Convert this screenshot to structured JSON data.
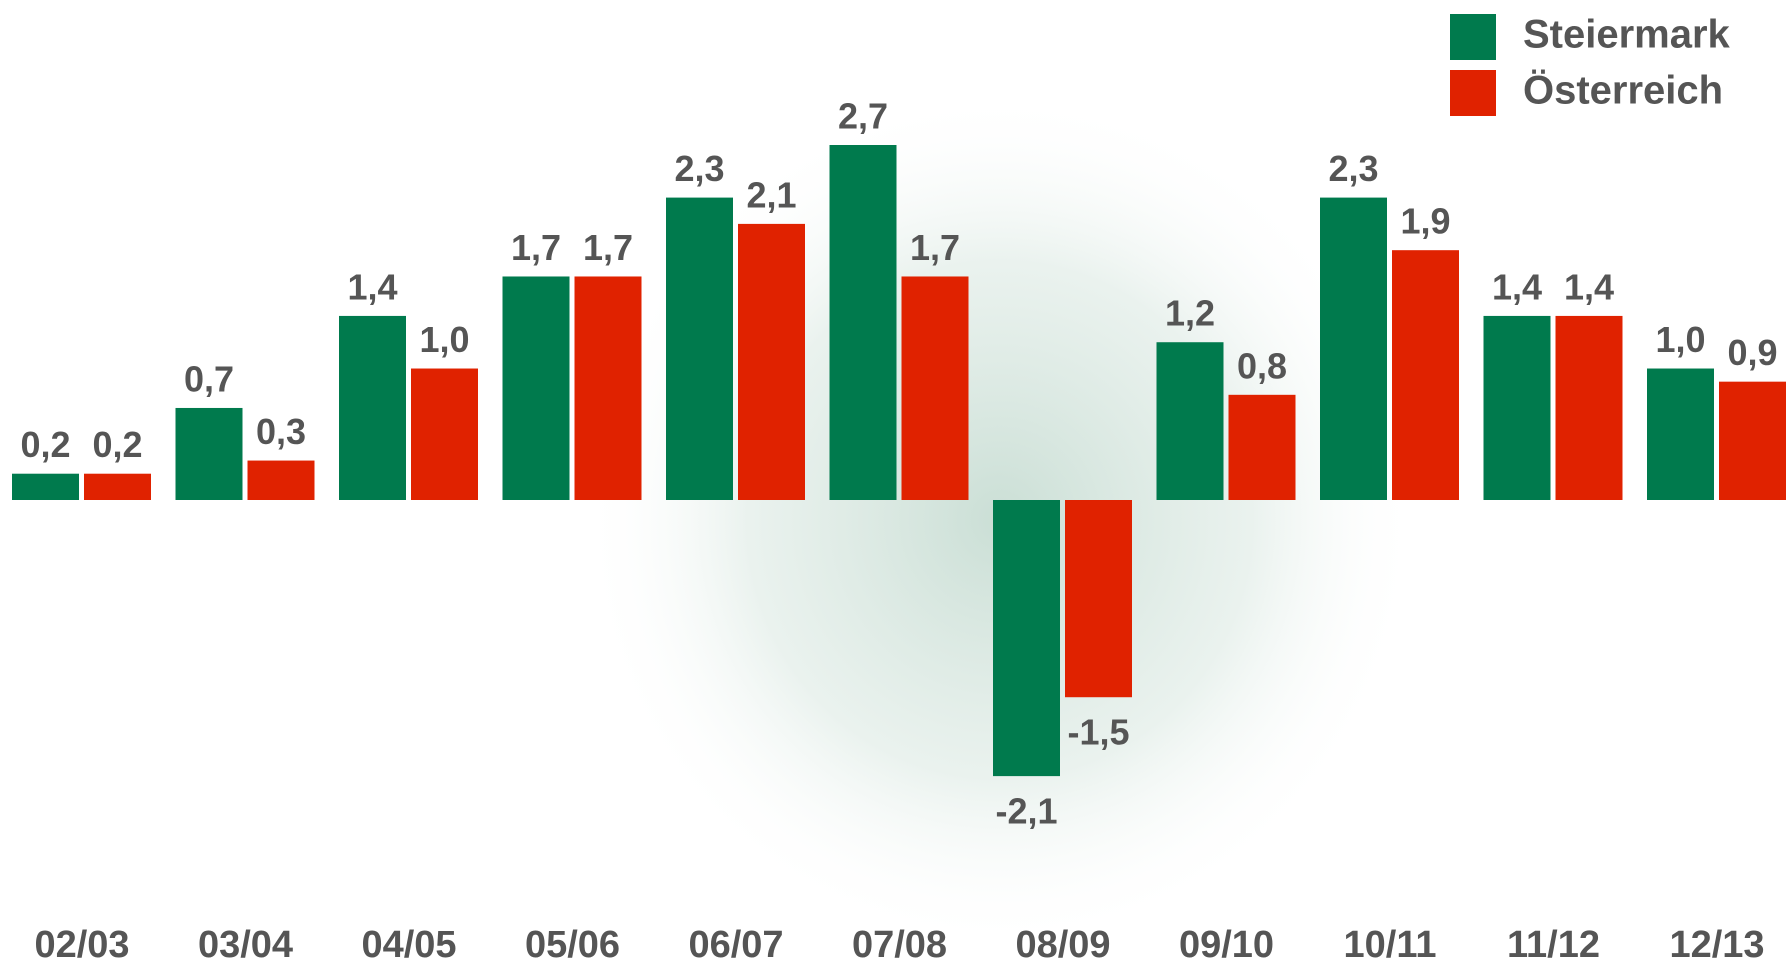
{
  "chart_data": {
    "type": "bar",
    "categories": [
      "02/03",
      "03/04",
      "04/05",
      "05/06",
      "06/07",
      "07/08",
      "08/09",
      "09/10",
      "10/11",
      "11/12",
      "12/13"
    ],
    "series": [
      {
        "name": "Steiermark",
        "color": "#007a4d",
        "values": [
          0.2,
          0.7,
          1.4,
          1.7,
          2.3,
          2.7,
          -2.1,
          1.2,
          2.3,
          1.4,
          1.0
        ],
        "value_labels": [
          "0,2",
          "0,7",
          "1,4",
          "1,7",
          "2,3",
          "2,7",
          "-2,1",
          "1,2",
          "2,3",
          "1,4",
          "1,0"
        ]
      },
      {
        "name": "Österreich",
        "color": "#e02200",
        "values": [
          0.2,
          0.3,
          1.0,
          1.7,
          2.1,
          1.7,
          -1.5,
          0.8,
          1.9,
          1.4,
          0.9
        ],
        "value_labels": [
          "0,2",
          "0,3",
          "1,0",
          "1,7",
          "2,1",
          "1,7",
          "-1,5",
          "0,8",
          "1,9",
          "1,4",
          "0,9"
        ]
      }
    ],
    "legend": "top-right"
  }
}
